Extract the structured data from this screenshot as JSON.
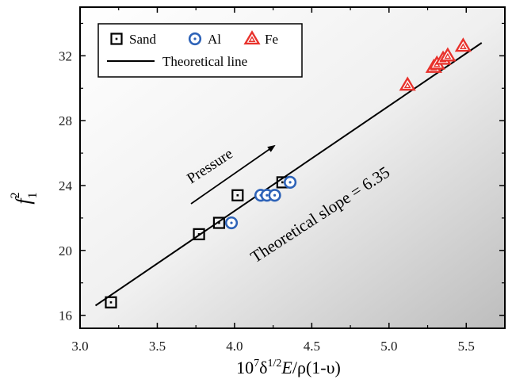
{
  "chart_data": {
    "type": "scatter",
    "xlabel": {
      "prefix": "10",
      "exp1": "7",
      "delta": "δ",
      "exp2": "1/2",
      "suffix_italic": "E",
      "suffix": "/ρ(1-υ)"
    },
    "ylabel": {
      "base": "f",
      "sub": "1",
      "sup": "2"
    },
    "xlim": [
      3.0,
      5.75
    ],
    "ylim": [
      15.2,
      35.0
    ],
    "xticks": [
      "3.0",
      "3.5",
      "4.0",
      "4.5",
      "5.0",
      "5.5"
    ],
    "yticks": [
      "16",
      "20",
      "24",
      "28",
      "32"
    ],
    "series": [
      {
        "name": "Sand",
        "marker": "square-dot",
        "color": "#000000",
        "points": [
          [
            3.2,
            16.8
          ],
          [
            3.77,
            21.0
          ],
          [
            3.9,
            21.7
          ],
          [
            4.02,
            23.4
          ],
          [
            4.31,
            24.2
          ]
        ]
      },
      {
        "name": "Al",
        "marker": "circle-dot",
        "color": "#2e63b8",
        "points": [
          [
            3.98,
            21.7
          ],
          [
            4.17,
            23.4
          ],
          [
            4.21,
            23.4
          ],
          [
            4.26,
            23.4
          ],
          [
            4.36,
            24.2
          ]
        ]
      },
      {
        "name": "Fe",
        "marker": "triangle",
        "color": "#e8322c",
        "points": [
          [
            5.12,
            30.2
          ],
          [
            5.29,
            31.3
          ],
          [
            5.31,
            31.5
          ],
          [
            5.35,
            31.8
          ],
          [
            5.38,
            32.0
          ],
          [
            5.48,
            32.6
          ]
        ]
      }
    ],
    "line": {
      "name": "Theoretical line",
      "x": [
        3.1,
        5.6
      ],
      "y": [
        16.6,
        32.8
      ]
    },
    "annotations": {
      "slope": "Theoretical slope  = 6.35",
      "arrow": "Pressure"
    },
    "legend": {
      "position": "top-left"
    }
  }
}
